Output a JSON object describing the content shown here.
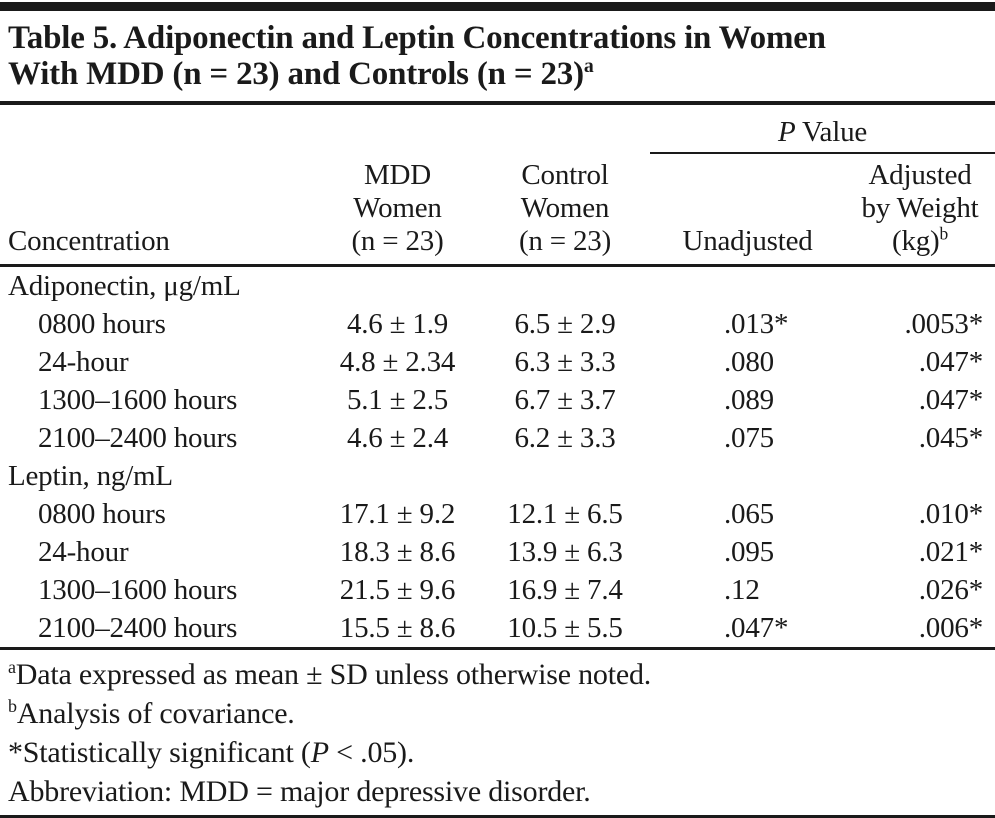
{
  "title": {
    "line1": "Table 5. Adiponectin and Leptin Concentrations in Women",
    "line2": "With MDD (n = 23) and Controls (n = 23)",
    "sup": "a"
  },
  "header": {
    "concentration": "Concentration",
    "mdd": {
      "line1": "MDD",
      "line2": "Women",
      "line3": "(n = 23)"
    },
    "control": {
      "line1": "Control",
      "line2": "Women",
      "line3": "(n = 23)"
    },
    "p_value": {
      "italic": "P",
      "rest": "Value"
    },
    "unadjusted": "Unadjusted",
    "adjusted": {
      "line1": "Adjusted",
      "line2": "by Weight",
      "line3": "(kg)",
      "sup": "b"
    }
  },
  "table": {
    "sections": [
      {
        "label": "Adiponectin, μg/mL",
        "rows": [
          {
            "label": "0800 hours",
            "mdd": "4.6 ± 1.9",
            "control": "6.5 ± 2.9",
            "p_unadjusted": ".013*",
            "p_adjusted": ".0053*"
          },
          {
            "label": "24-hour",
            "mdd": "4.8 ± 2.34",
            "control": "6.3 ± 3.3",
            "p_unadjusted": ".080",
            "p_adjusted": ".047*"
          },
          {
            "label": "1300–1600 hours",
            "mdd": "5.1 ± 2.5",
            "control": "6.7 ± 3.7",
            "p_unadjusted": ".089",
            "p_adjusted": ".047*"
          },
          {
            "label": "2100–2400 hours",
            "mdd": "4.6 ± 2.4",
            "control": "6.2 ± 3.3",
            "p_unadjusted": ".075",
            "p_adjusted": ".045*"
          }
        ]
      },
      {
        "label": "Leptin, ng/mL",
        "rows": [
          {
            "label": "0800 hours",
            "mdd": "17.1 ± 9.2",
            "control": "12.1 ± 6.5",
            "p_unadjusted": ".065",
            "p_adjusted": ".010*"
          },
          {
            "label": "24-hour",
            "mdd": "18.3 ± 8.6",
            "control": "13.9 ± 6.3",
            "p_unadjusted": ".095",
            "p_adjusted": ".021*"
          },
          {
            "label": "1300–1600 hours",
            "mdd": "21.5 ± 9.6",
            "control": "16.9 ± 7.4",
            "p_unadjusted": ".12",
            "p_adjusted": ".026*"
          },
          {
            "label": "2100–2400 hours",
            "mdd": "15.5 ± 8.6",
            "control": "10.5 ± 5.5",
            "p_unadjusted": ".047*",
            "p_adjusted": ".006*"
          }
        ]
      }
    ]
  },
  "footnotes": {
    "a": {
      "sup": "a",
      "text": "Data expressed as mean ± SD unless otherwise noted."
    },
    "b": {
      "sup": "b",
      "text": "Analysis of covariance."
    },
    "significance": {
      "pre": "*Statistically significant (",
      "p": "P",
      "post": " < .05)."
    },
    "abbreviation": "Abbreviation: MDD = major depressive disorder."
  },
  "colors": {
    "text": "#1a1a1a",
    "rule": "#1a1a1a",
    "background": "#ffffff"
  }
}
